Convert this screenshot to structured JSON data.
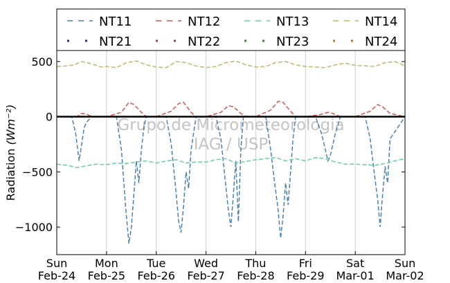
{
  "chart_data": {
    "type": "line",
    "title": "",
    "ylabel": "Radiation",
    "ylabel_unit": "(Wm⁻²)",
    "xlabel": "",
    "ylim": [
      -1250,
      600
    ],
    "xlim": [
      0,
      7
    ],
    "yticks": [
      500,
      0,
      -500,
      -1000
    ],
    "ytick_labels": [
      "500",
      "0",
      "−500",
      "−1000"
    ],
    "x_ticks": [
      {
        "x": 0,
        "day": "Sun",
        "date": "Feb-24"
      },
      {
        "x": 1,
        "day": "Mon",
        "date": "Feb-25"
      },
      {
        "x": 2,
        "day": "Tue",
        "date": "Feb-26"
      },
      {
        "x": 3,
        "day": "Wed",
        "date": "Feb-27"
      },
      {
        "x": 4,
        "day": "Thu",
        "date": "Feb-28"
      },
      {
        "x": 5,
        "day": "Fri",
        "date": "Feb-29"
      },
      {
        "x": 6,
        "day": "Sat",
        "date": "Mar-01"
      },
      {
        "x": 7,
        "day": "Sun",
        "date": "Mar-02"
      }
    ],
    "grid": "vertical",
    "legend_position": "top",
    "watermark": [
      "Grupo de Micrometeorologia",
      "IAG / USP"
    ],
    "series": [
      {
        "name": "NT11",
        "style": "dashed",
        "color": "#4682b4",
        "x": [
          0,
          0.3,
          0.38,
          0.45,
          0.5,
          0.55,
          0.6,
          0.66,
          0.7,
          1.2,
          1.3,
          1.38,
          1.45,
          1.5,
          1.55,
          1.6,
          1.65,
          1.7,
          1.75,
          1.8,
          2.2,
          2.3,
          2.38,
          2.45,
          2.5,
          2.55,
          2.6,
          2.65,
          2.7,
          2.75,
          2.8,
          3.2,
          3.3,
          3.38,
          3.45,
          3.5,
          3.55,
          3.6,
          3.65,
          3.7,
          3.75,
          4.2,
          4.3,
          4.38,
          4.45,
          4.5,
          4.55,
          4.6,
          4.65,
          4.7,
          4.75,
          4.8,
          5.2,
          5.32,
          5.4,
          5.45,
          5.5,
          5.55,
          5.6,
          5.65,
          5.7,
          6.2,
          6.3,
          6.38,
          6.45,
          6.5,
          6.55,
          6.6,
          6.65,
          6.7,
          7
        ],
        "y": [
          0,
          0,
          -150,
          -400,
          -250,
          -100,
          -50,
          -20,
          0,
          0,
          -300,
          -800,
          -1150,
          -1000,
          -700,
          -400,
          -600,
          -300,
          -100,
          0,
          0,
          -250,
          -600,
          -950,
          -1050,
          -800,
          -500,
          -650,
          -300,
          -150,
          0,
          0,
          -200,
          -550,
          -850,
          -1000,
          -700,
          -400,
          -950,
          -300,
          0,
          0,
          -300,
          -600,
          -850,
          -1100,
          -900,
          -600,
          -800,
          -500,
          -200,
          0,
          0,
          -150,
          -300,
          -400,
          -350,
          -250,
          -150,
          -80,
          0,
          0,
          -200,
          -500,
          -750,
          -1000,
          -700,
          -450,
          -600,
          -200,
          0
        ]
      },
      {
        "name": "NT12",
        "style": "dashed",
        "color": "#d9534f",
        "x": [
          0,
          0.4,
          0.5,
          0.6,
          0.7,
          1,
          1.3,
          1.45,
          1.55,
          1.7,
          1.8,
          2,
          2.3,
          2.45,
          2.55,
          2.7,
          2.8,
          3,
          3.3,
          3.45,
          3.55,
          3.7,
          3.8,
          4,
          4.3,
          4.45,
          4.55,
          4.7,
          4.8,
          5,
          5.3,
          5.45,
          5.55,
          5.7,
          6,
          6.3,
          6.45,
          6.55,
          6.7,
          7
        ],
        "y": [
          0,
          0,
          30,
          25,
          0,
          0,
          40,
          130,
          110,
          40,
          0,
          0,
          50,
          120,
          130,
          40,
          0,
          0,
          40,
          100,
          90,
          30,
          0,
          0,
          60,
          140,
          130,
          50,
          0,
          0,
          20,
          40,
          30,
          0,
          0,
          50,
          110,
          90,
          30,
          0
        ]
      },
      {
        "name": "NT13",
        "style": "dashed",
        "color": "#66cdaa",
        "x": [
          0,
          0.2,
          0.4,
          0.6,
          0.8,
          1,
          1.2,
          1.4,
          1.6,
          1.8,
          2,
          2.2,
          2.4,
          2.6,
          2.8,
          3,
          3.2,
          3.4,
          3.6,
          3.8,
          4,
          4.2,
          4.4,
          4.6,
          4.8,
          5,
          5.2,
          5.4,
          5.6,
          5.8,
          6,
          6.2,
          6.4,
          6.6,
          6.8,
          7
        ],
        "y": [
          -430,
          -440,
          -460,
          -445,
          -430,
          -435,
          -420,
          -425,
          -410,
          -400,
          -420,
          -400,
          -390,
          -420,
          -410,
          -410,
          -390,
          -380,
          -420,
          -405,
          -390,
          -380,
          -370,
          -400,
          -380,
          -400,
          -370,
          -380,
          -410,
          -430,
          -430,
          -435,
          -440,
          -425,
          -400,
          -380
        ]
      },
      {
        "name": "NT14",
        "style": "dashed",
        "color": "#bdb76b",
        "x": [
          0,
          0.2,
          0.35,
          0.5,
          0.7,
          0.9,
          1,
          1.2,
          1.4,
          1.6,
          1.8,
          2,
          2.2,
          2.4,
          2.6,
          2.8,
          3,
          3.2,
          3.4,
          3.6,
          3.8,
          4,
          4.2,
          4.4,
          4.6,
          4.8,
          5,
          5.2,
          5.4,
          5.6,
          5.8,
          6,
          6.2,
          6.4,
          6.6,
          6.8,
          7
        ],
        "y": [
          455,
          460,
          470,
          500,
          480,
          450,
          455,
          445,
          490,
          505,
          470,
          450,
          445,
          500,
          490,
          460,
          445,
          455,
          490,
          505,
          470,
          450,
          455,
          490,
          500,
          470,
          455,
          450,
          445,
          470,
          485,
          465,
          460,
          455,
          490,
          500,
          460
        ]
      },
      {
        "name": "NT21",
        "style": "dotted",
        "color": "#1f2a8f",
        "x": [],
        "y": []
      },
      {
        "name": "NT22",
        "style": "dotted",
        "color": "#b03060",
        "x": [],
        "y": []
      },
      {
        "name": "NT23",
        "style": "dotted",
        "color": "#2e8b2e",
        "x": [],
        "y": []
      },
      {
        "name": "NT24",
        "style": "dotted",
        "color": "#c08000",
        "x": [],
        "y": []
      }
    ],
    "reference_line": {
      "y": 0,
      "color": "#000000"
    }
  }
}
